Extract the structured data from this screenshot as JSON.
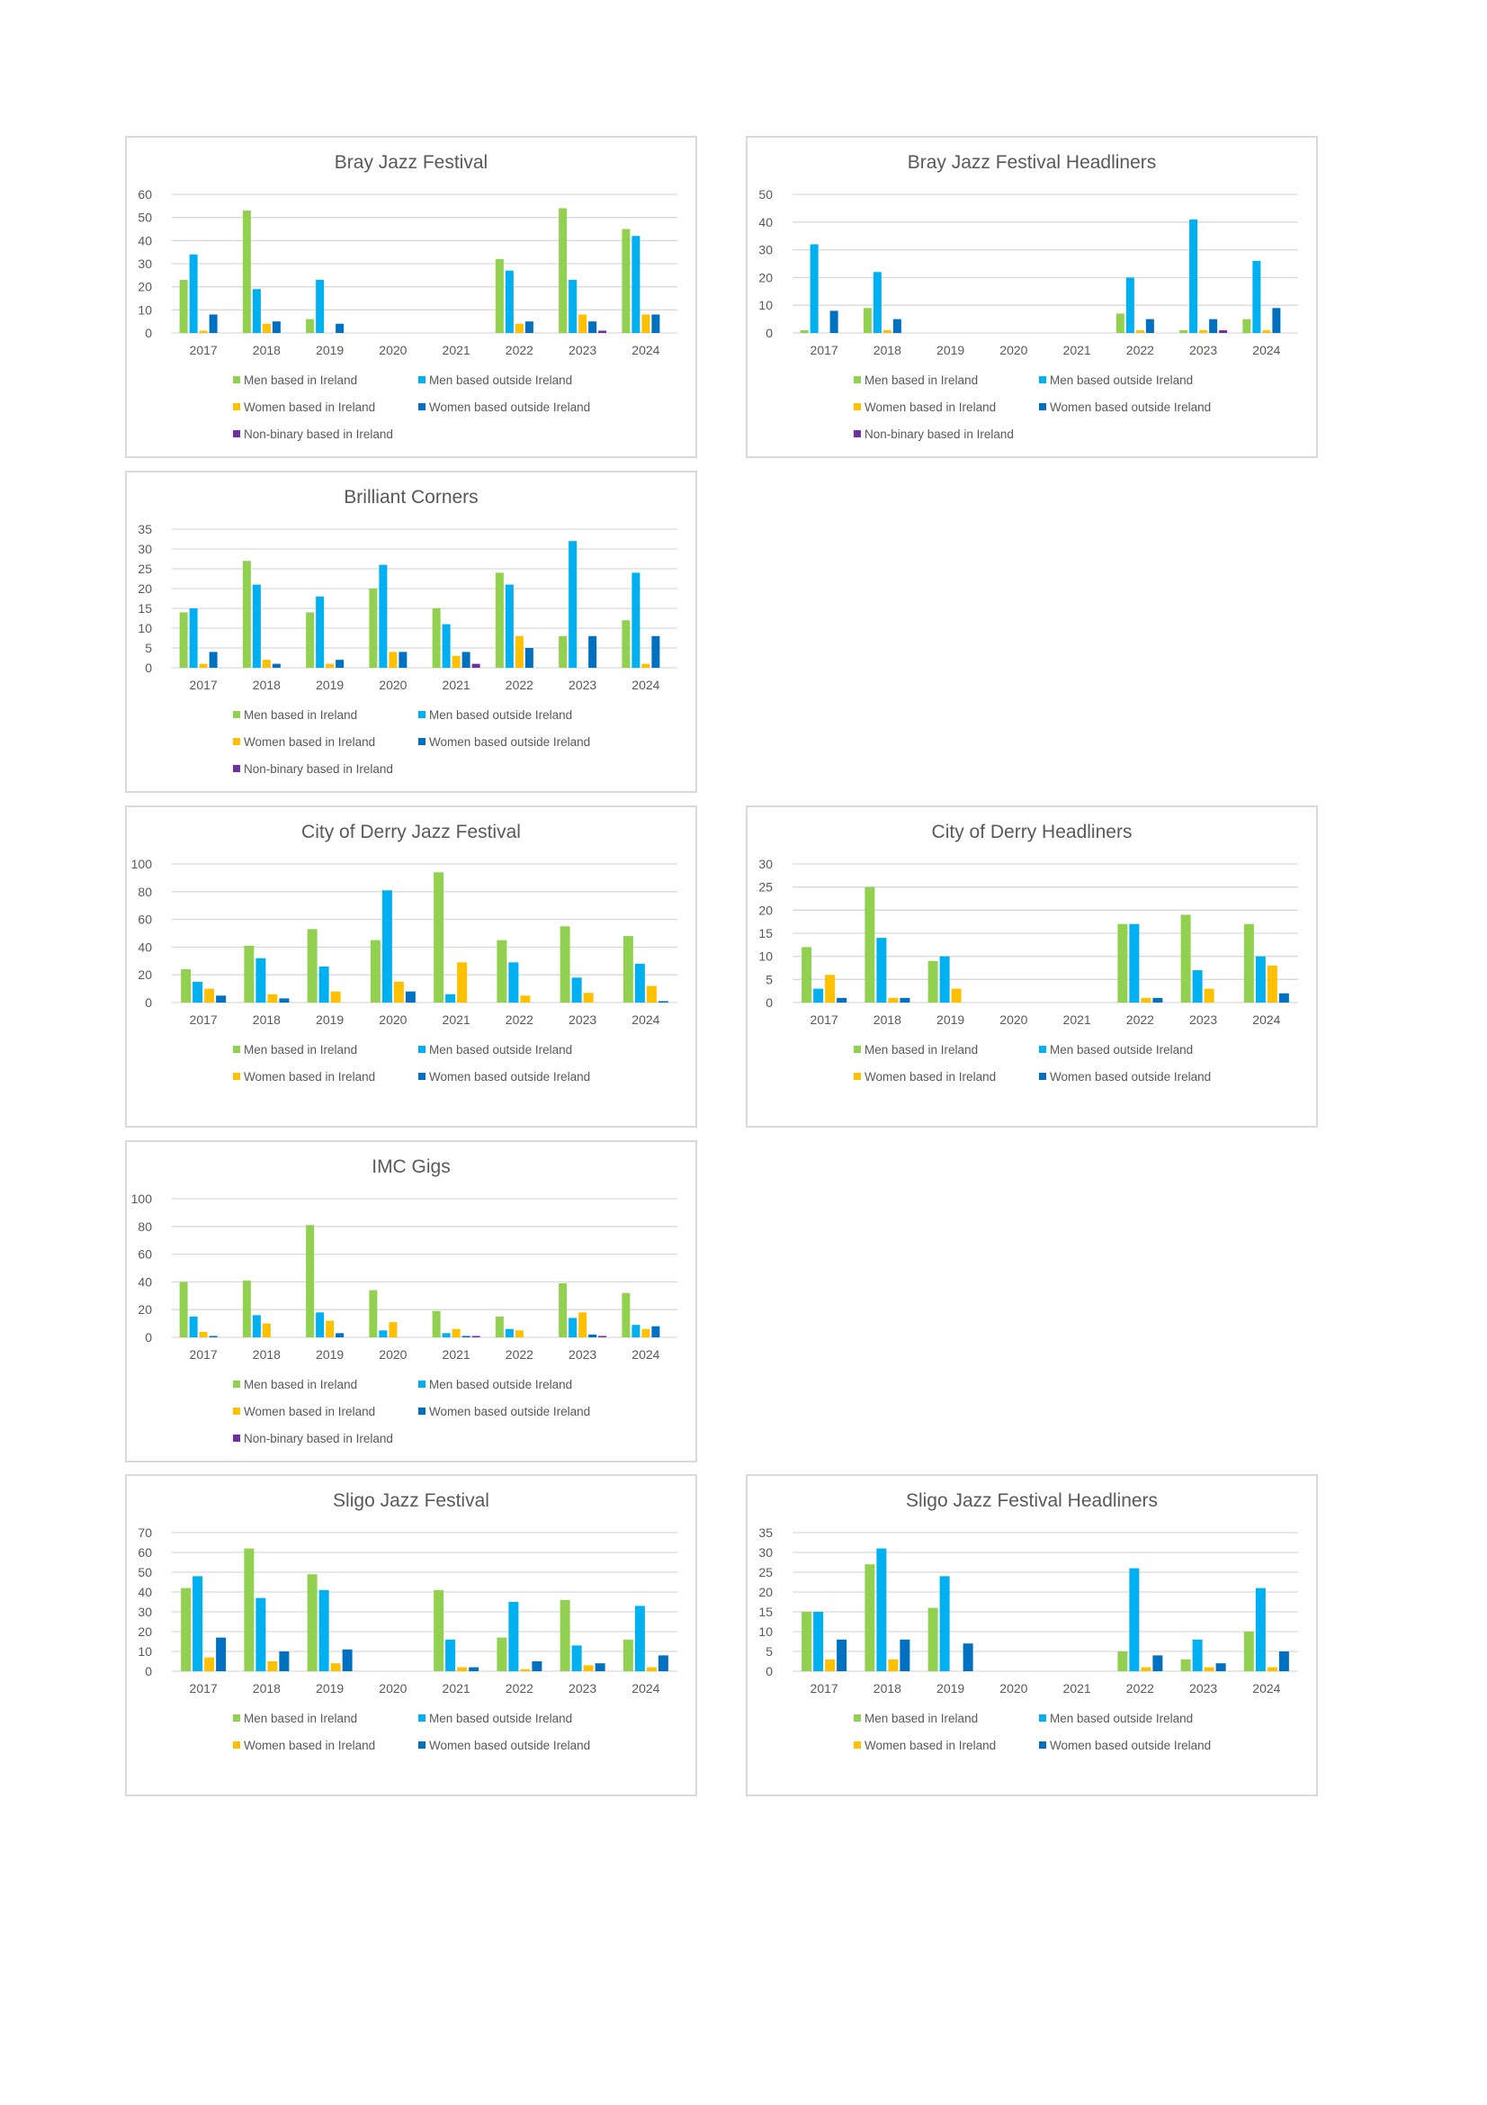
{
  "colors": {
    "men_ireland": "#92d050",
    "men_outside": "#00b0f0",
    "women_ireland": "#ffc000",
    "women_outside": "#0070c0",
    "nonbinary_ireland": "#7030a0"
  },
  "series_names": {
    "men_ireland": "Men based in Ireland",
    "men_outside": "Men based outside Ireland",
    "women_ireland": "Women based in Ireland",
    "women_outside": "Women based outside Ireland",
    "nonbinary_ireland": "Non-binary based in Ireland"
  },
  "chart_data": [
    {
      "id": "bray-jazz-festival",
      "type": "bar",
      "title": "Bray Jazz Festival",
      "categories": [
        "2017",
        "2018",
        "2019",
        "2020",
        "2021",
        "2022",
        "2023",
        "2024"
      ],
      "ylim": [
        0,
        60
      ],
      "yticks": [
        0,
        10,
        20,
        30,
        40,
        50,
        60
      ],
      "series": [
        {
          "key": "men_ireland",
          "name": "Men based in Ireland",
          "values": [
            23,
            53,
            6,
            0,
            0,
            32,
            54,
            45
          ]
        },
        {
          "key": "men_outside",
          "name": "Men based outside Ireland",
          "values": [
            34,
            19,
            23,
            0,
            0,
            27,
            23,
            42
          ]
        },
        {
          "key": "women_ireland",
          "name": "Women based in Ireland",
          "values": [
            1,
            4,
            0,
            0,
            0,
            4,
            8,
            8
          ]
        },
        {
          "key": "women_outside",
          "name": "Women based outside Ireland",
          "values": [
            8,
            5,
            4,
            0,
            0,
            5,
            5,
            8
          ]
        },
        {
          "key": "nonbinary_ireland",
          "name": "Non-binary based in Ireland",
          "values": [
            0,
            0,
            0,
            0,
            0,
            0,
            1,
            0
          ]
        }
      ]
    },
    {
      "id": "bray-jazz-festival-headliners",
      "type": "bar",
      "title": "Bray Jazz Festival Headliners",
      "categories": [
        "2017",
        "2018",
        "2019",
        "2020",
        "2021",
        "2022",
        "2023",
        "2024"
      ],
      "ylim": [
        0,
        50
      ],
      "yticks": [
        0,
        10,
        20,
        30,
        40,
        50
      ],
      "series": [
        {
          "key": "men_ireland",
          "name": "Men based in Ireland",
          "values": [
            1,
            9,
            0,
            0,
            0,
            7,
            1,
            5
          ]
        },
        {
          "key": "men_outside",
          "name": "Men based outside Ireland",
          "values": [
            32,
            22,
            0,
            0,
            0,
            20,
            41,
            26
          ]
        },
        {
          "key": "women_ireland",
          "name": "Women based in Ireland",
          "values": [
            0,
            1,
            0,
            0,
            0,
            1,
            1,
            1
          ]
        },
        {
          "key": "women_outside",
          "name": "Women based outside Ireland",
          "values": [
            8,
            5,
            0,
            0,
            0,
            5,
            5,
            9
          ]
        },
        {
          "key": "nonbinary_ireland",
          "name": "Non-binary based in Ireland",
          "values": [
            0,
            0,
            0,
            0,
            0,
            0,
            1,
            0
          ]
        }
      ]
    },
    {
      "id": "brilliant-corners",
      "type": "bar",
      "title": "Brilliant Corners",
      "categories": [
        "2017",
        "2018",
        "2019",
        "2020",
        "2021",
        "2022",
        "2023",
        "2024"
      ],
      "ylim": [
        0,
        35
      ],
      "yticks": [
        0,
        5,
        10,
        15,
        20,
        25,
        30,
        35
      ],
      "series": [
        {
          "key": "men_ireland",
          "name": "Men based in Ireland",
          "values": [
            14,
            27,
            14,
            20,
            15,
            24,
            8,
            12
          ]
        },
        {
          "key": "men_outside",
          "name": "Men based outside Ireland",
          "values": [
            15,
            21,
            18,
            26,
            11,
            21,
            32,
            24
          ]
        },
        {
          "key": "women_ireland",
          "name": "Women based in Ireland",
          "values": [
            1,
            2,
            1,
            4,
            3,
            8,
            0,
            1
          ]
        },
        {
          "key": "women_outside",
          "name": "Women based outside Ireland",
          "values": [
            4,
            1,
            2,
            4,
            4,
            5,
            8,
            8
          ]
        },
        {
          "key": "nonbinary_ireland",
          "name": "Non-binary based in Ireland",
          "values": [
            0,
            0,
            0,
            0,
            1,
            0,
            0,
            0
          ]
        }
      ]
    },
    {
      "id": "city-of-derry-jazz-festival",
      "type": "bar",
      "title": "City of Derry Jazz Festival",
      "categories": [
        "2017",
        "2018",
        "2019",
        "2020",
        "2021",
        "2022",
        "2023",
        "2024"
      ],
      "ylim": [
        0,
        100
      ],
      "yticks": [
        0,
        20,
        40,
        60,
        80,
        100
      ],
      "series": [
        {
          "key": "men_ireland",
          "name": "Men based in Ireland",
          "values": [
            24,
            41,
            53,
            45,
            94,
            45,
            55,
            48
          ]
        },
        {
          "key": "men_outside",
          "name": "Men based outside Ireland",
          "values": [
            15,
            32,
            26,
            81,
            6,
            29,
            18,
            28
          ]
        },
        {
          "key": "women_ireland",
          "name": "Women based in Ireland",
          "values": [
            10,
            6,
            8,
            15,
            29,
            5,
            7,
            12
          ]
        },
        {
          "key": "women_outside",
          "name": "Women based outside Ireland",
          "values": [
            5,
            3,
            0,
            8,
            0,
            0,
            0,
            1
          ]
        }
      ]
    },
    {
      "id": "city-of-derry-headliners",
      "type": "bar",
      "title": "City of Derry Headliners",
      "categories": [
        "2017",
        "2018",
        "2019",
        "2020",
        "2021",
        "2022",
        "2023",
        "2024"
      ],
      "ylim": [
        0,
        30
      ],
      "yticks": [
        0,
        5,
        10,
        15,
        20,
        25,
        30
      ],
      "series": [
        {
          "key": "men_ireland",
          "name": "Men based in Ireland",
          "values": [
            12,
            25,
            9,
            0,
            0,
            17,
            19,
            17
          ]
        },
        {
          "key": "men_outside",
          "name": "Men based outside Ireland",
          "values": [
            3,
            14,
            10,
            0,
            0,
            17,
            7,
            10
          ]
        },
        {
          "key": "women_ireland",
          "name": "Women based in Ireland",
          "values": [
            6,
            1,
            3,
            0,
            0,
            1,
            3,
            8
          ]
        },
        {
          "key": "women_outside",
          "name": "Women based outside Ireland",
          "values": [
            1,
            1,
            0,
            0,
            0,
            1,
            0,
            2
          ]
        }
      ]
    },
    {
      "id": "imc-gigs",
      "type": "bar",
      "title": "IMC Gigs",
      "categories": [
        "2017",
        "2018",
        "2019",
        "2020",
        "2021",
        "2022",
        "2023",
        "2024"
      ],
      "ylim": [
        0,
        100
      ],
      "yticks": [
        0,
        20,
        40,
        60,
        80,
        100
      ],
      "series": [
        {
          "key": "men_ireland",
          "name": "Men based in Ireland",
          "values": [
            40,
            41,
            81,
            34,
            19,
            15,
            39,
            32
          ]
        },
        {
          "key": "men_outside",
          "name": "Men based outside Ireland",
          "values": [
            15,
            16,
            18,
            5,
            3,
            6,
            14,
            9
          ]
        },
        {
          "key": "women_ireland",
          "name": "Women based in Ireland",
          "values": [
            4,
            10,
            12,
            11,
            6,
            5,
            18,
            6
          ]
        },
        {
          "key": "women_outside",
          "name": "Women based outside Ireland",
          "values": [
            1,
            0,
            3,
            0,
            1,
            0,
            2,
            8
          ]
        },
        {
          "key": "nonbinary_ireland",
          "name": "Non-binary based in Ireland",
          "values": [
            0,
            0,
            0,
            0,
            1,
            0,
            1,
            0
          ]
        }
      ]
    },
    {
      "id": "sligo-jazz-festival",
      "type": "bar",
      "title": "Sligo Jazz Festival",
      "categories": [
        "2017",
        "2018",
        "2019",
        "2020",
        "2021",
        "2022",
        "2023",
        "2024"
      ],
      "ylim": [
        0,
        70
      ],
      "yticks": [
        0,
        10,
        20,
        30,
        40,
        50,
        60,
        70
      ],
      "series": [
        {
          "key": "men_ireland",
          "name": "Men based in Ireland",
          "values": [
            42,
            62,
            49,
            0,
            41,
            17,
            36,
            16
          ]
        },
        {
          "key": "men_outside",
          "name": "Men based outside Ireland",
          "values": [
            48,
            37,
            41,
            0,
            16,
            35,
            13,
            33
          ]
        },
        {
          "key": "women_ireland",
          "name": "Women based in Ireland",
          "values": [
            7,
            5,
            4,
            0,
            2,
            1,
            3,
            2
          ]
        },
        {
          "key": "women_outside",
          "name": "Women based outside Ireland",
          "values": [
            17,
            10,
            11,
            0,
            2,
            5,
            4,
            8
          ]
        }
      ]
    },
    {
      "id": "sligo-jazz-festival-headliners",
      "type": "bar",
      "title": "Sligo Jazz Festival Headliners",
      "categories": [
        "2017",
        "2018",
        "2019",
        "2020",
        "2021",
        "2022",
        "2023",
        "2024"
      ],
      "ylim": [
        0,
        35
      ],
      "yticks": [
        0,
        5,
        10,
        15,
        20,
        25,
        30,
        35
      ],
      "series": [
        {
          "key": "men_ireland",
          "name": "Men based in Ireland",
          "values": [
            15,
            27,
            16,
            0,
            0,
            5,
            3,
            10
          ]
        },
        {
          "key": "men_outside",
          "name": "Men based outside Ireland",
          "values": [
            15,
            31,
            24,
            0,
            0,
            26,
            8,
            21
          ]
        },
        {
          "key": "women_ireland",
          "name": "Women based in Ireland",
          "values": [
            3,
            3,
            0,
            0,
            0,
            1,
            1,
            1
          ]
        },
        {
          "key": "women_outside",
          "name": "Women based outside Ireland",
          "values": [
            8,
            8,
            7,
            0,
            0,
            4,
            2,
            5
          ]
        }
      ]
    }
  ]
}
